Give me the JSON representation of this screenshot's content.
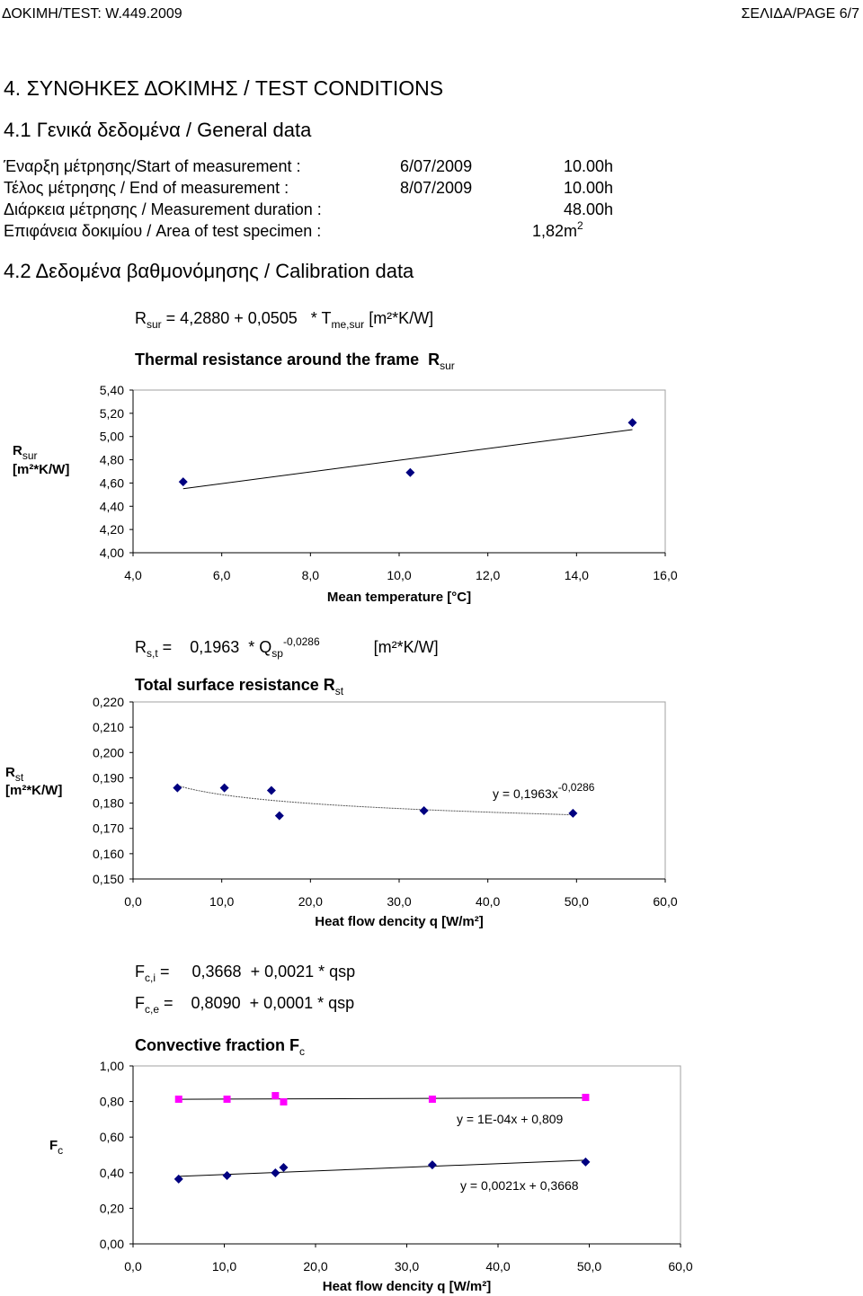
{
  "header": {
    "left": "ΔΟΚΙΜΗ/TEST: W.449.2009",
    "right": "ΣΕΛΙΔΑ/PAGE 6/7"
  },
  "section_title": "4. ΣΥΝΘΗΚΕΣ ΔΟΚΙΜΗΣ / TEST CONDITIONS",
  "general": {
    "title": "4.1 Γενικά δεδομένα / General data",
    "rows": [
      {
        "label": "Έναρξη μέτρησης/Start of measurement :",
        "date": "6/07/2009",
        "time": "10.00h"
      },
      {
        "label": "Τέλος μέτρησης / End of measurement :",
        "date": "8/07/2009",
        "time": "10.00h"
      },
      {
        "label": "Διάρκεια μέτρησης / Measurement duration :",
        "value": "48.00h"
      },
      {
        "label": "Επιφάνεια δοκιμίου / Area of test specimen :",
        "value": "1,82m",
        "sup": "2"
      }
    ]
  },
  "calibration_title": "4.2 Δεδομένα βαθμονόμησης / Calibration data",
  "chart_data": [
    {
      "type": "scatter",
      "formulas": [
        [
          {
            "text": "R"
          },
          {
            "sub": "sur"
          },
          {
            "text": " = 4,2880 + 0,0505   * T"
          },
          {
            "sub": "me,sur"
          },
          {
            "text": " [m²*K/W]"
          }
        ]
      ],
      "title": [
        {
          "text": "Thermal resistance around the frame  R"
        },
        {
          "sub": "sur"
        }
      ],
      "ylabel": [
        [
          {
            "text": "R"
          },
          {
            "sub": "sur"
          }
        ],
        [
          {
            "text": "[m²*K/W]"
          }
        ]
      ],
      "xlabel": "Mean temperature [°C]",
      "x": [
        5.13,
        10.25,
        15.26
      ],
      "series": [
        {
          "color": "#000080",
          "marker": "diamond",
          "trendline": "linear",
          "values": [
            4.61,
            4.69,
            5.12
          ]
        }
      ],
      "xlim": [
        4,
        16
      ],
      "xticks": [
        {
          "value": 4,
          "label": "4,0"
        },
        {
          "value": 6,
          "label": "6,0"
        },
        {
          "value": 8,
          "label": "8,0"
        },
        {
          "value": 10,
          "label": "10,0"
        },
        {
          "value": 12,
          "label": "12,0"
        },
        {
          "value": 14,
          "label": "14,0"
        },
        {
          "value": 16,
          "label": "16,0"
        }
      ],
      "ylim": [
        4,
        5.4
      ],
      "yticks": [
        {
          "value": 4,
          "label": "4,00"
        },
        {
          "value": 4.2,
          "label": "4,20"
        },
        {
          "value": 4.4,
          "label": "4,40"
        },
        {
          "value": 4.6,
          "label": "4,60"
        },
        {
          "value": 4.8,
          "label": "4,80"
        },
        {
          "value": 5,
          "label": "5,00"
        },
        {
          "value": 5.2,
          "label": "5,20"
        },
        {
          "value": 5.4,
          "label": "5,40"
        }
      ],
      "grid": false
    },
    {
      "type": "scatter",
      "formulas": [
        [
          {
            "text": "R"
          },
          {
            "sub": "s,t"
          },
          {
            "text": " =    0,1963  * Q"
          },
          {
            "sub": "sp"
          },
          {
            "sup": "-0,0286"
          },
          {
            "text": "            [m²*K/W]"
          }
        ]
      ],
      "title": [
        {
          "text": "Total surface resistance R"
        },
        {
          "sub": "st"
        }
      ],
      "ylabel": [
        [
          {
            "text": "R"
          },
          {
            "sub": "st"
          }
        ],
        [
          {
            "text": "[m²*K/W]"
          }
        ]
      ],
      "xlabel": "Heat flow dencity q [W/m²]",
      "x": [
        5.0,
        10.3,
        15.6,
        16.5,
        32.8,
        49.6
      ],
      "series": [
        {
          "color": "#000080",
          "marker": "diamond",
          "trendline": "power",
          "values": [
            0.186,
            0.186,
            0.185,
            0.175,
            0.177,
            0.176
          ],
          "annotation": [
            {
              "text": "y = 0,1963x"
            },
            {
              "sup": "-0,0286"
            }
          ]
        }
      ],
      "xlim": [
        0,
        60
      ],
      "xticks": [
        {
          "value": 0,
          "label": "0,0"
        },
        {
          "value": 10,
          "label": "10,0"
        },
        {
          "value": 20,
          "label": "20,0"
        },
        {
          "value": 30,
          "label": "30,0"
        },
        {
          "value": 40,
          "label": "40,0"
        },
        {
          "value": 50,
          "label": "50,0"
        },
        {
          "value": 60,
          "label": "60,0"
        }
      ],
      "ylim": [
        0.15,
        0.22
      ],
      "yticks": [
        {
          "value": 0.15,
          "label": "0,150"
        },
        {
          "value": 0.16,
          "label": "0,160"
        },
        {
          "value": 0.17,
          "label": "0,170"
        },
        {
          "value": 0.18,
          "label": "0,180"
        },
        {
          "value": 0.19,
          "label": "0,190"
        },
        {
          "value": 0.2,
          "label": "0,200"
        },
        {
          "value": 0.21,
          "label": "0,210"
        },
        {
          "value": 0.22,
          "label": "0,220"
        }
      ],
      "grid": false
    },
    {
      "type": "scatter",
      "formulas": [
        [
          {
            "text": "F"
          },
          {
            "sub": "c,i"
          },
          {
            "text": " =     0,3668  + 0,0021 * qsp"
          }
        ],
        [
          {
            "text": "F"
          },
          {
            "sub": "c,e"
          },
          {
            "text": " =    0,8090  + 0,0001 * qsp"
          }
        ]
      ],
      "title": [
        {
          "text": "Convective fraction F"
        },
        {
          "sub": "c"
        }
      ],
      "ylabel": [
        [
          {
            "text": "F"
          },
          {
            "sub": "c"
          }
        ]
      ],
      "xlabel": "Heat flow dencity q [W/m²]",
      "x": [
        5.0,
        10.3,
        15.6,
        16.5,
        32.8,
        49.6
      ],
      "series": [
        {
          "color": "#000080",
          "marker": "diamond",
          "trendline": "linear",
          "values": [
            0.364,
            0.384,
            0.399,
            0.429,
            0.444,
            0.46
          ],
          "annotation": [
            {
              "text": "y = 0,0021x + 0,3668"
            }
          ]
        },
        {
          "color": "#ff00ff",
          "marker": "square",
          "trendline": "linear",
          "values": [
            0.813,
            0.813,
            0.833,
            0.798,
            0.813,
            0.823
          ],
          "annotation": [
            {
              "text": "y = 1E-04x + 0,809"
            }
          ]
        }
      ],
      "xlim": [
        0,
        60
      ],
      "xticks": [
        {
          "value": 0,
          "label": "0,0"
        },
        {
          "value": 10,
          "label": "10,0"
        },
        {
          "value": 20,
          "label": "20,0"
        },
        {
          "value": 30,
          "label": "30,0"
        },
        {
          "value": 40,
          "label": "40,0"
        },
        {
          "value": 50,
          "label": "50,0"
        },
        {
          "value": 60,
          "label": "60,0"
        }
      ],
      "ylim": [
        0,
        1
      ],
      "yticks": [
        {
          "value": 0,
          "label": "0,00"
        },
        {
          "value": 0.2,
          "label": "0,20"
        },
        {
          "value": 0.4,
          "label": "0,40"
        },
        {
          "value": 0.6,
          "label": "0,60"
        },
        {
          "value": 0.8,
          "label": "0,80"
        },
        {
          "value": 1,
          "label": "1,00"
        }
      ],
      "grid": false
    }
  ]
}
